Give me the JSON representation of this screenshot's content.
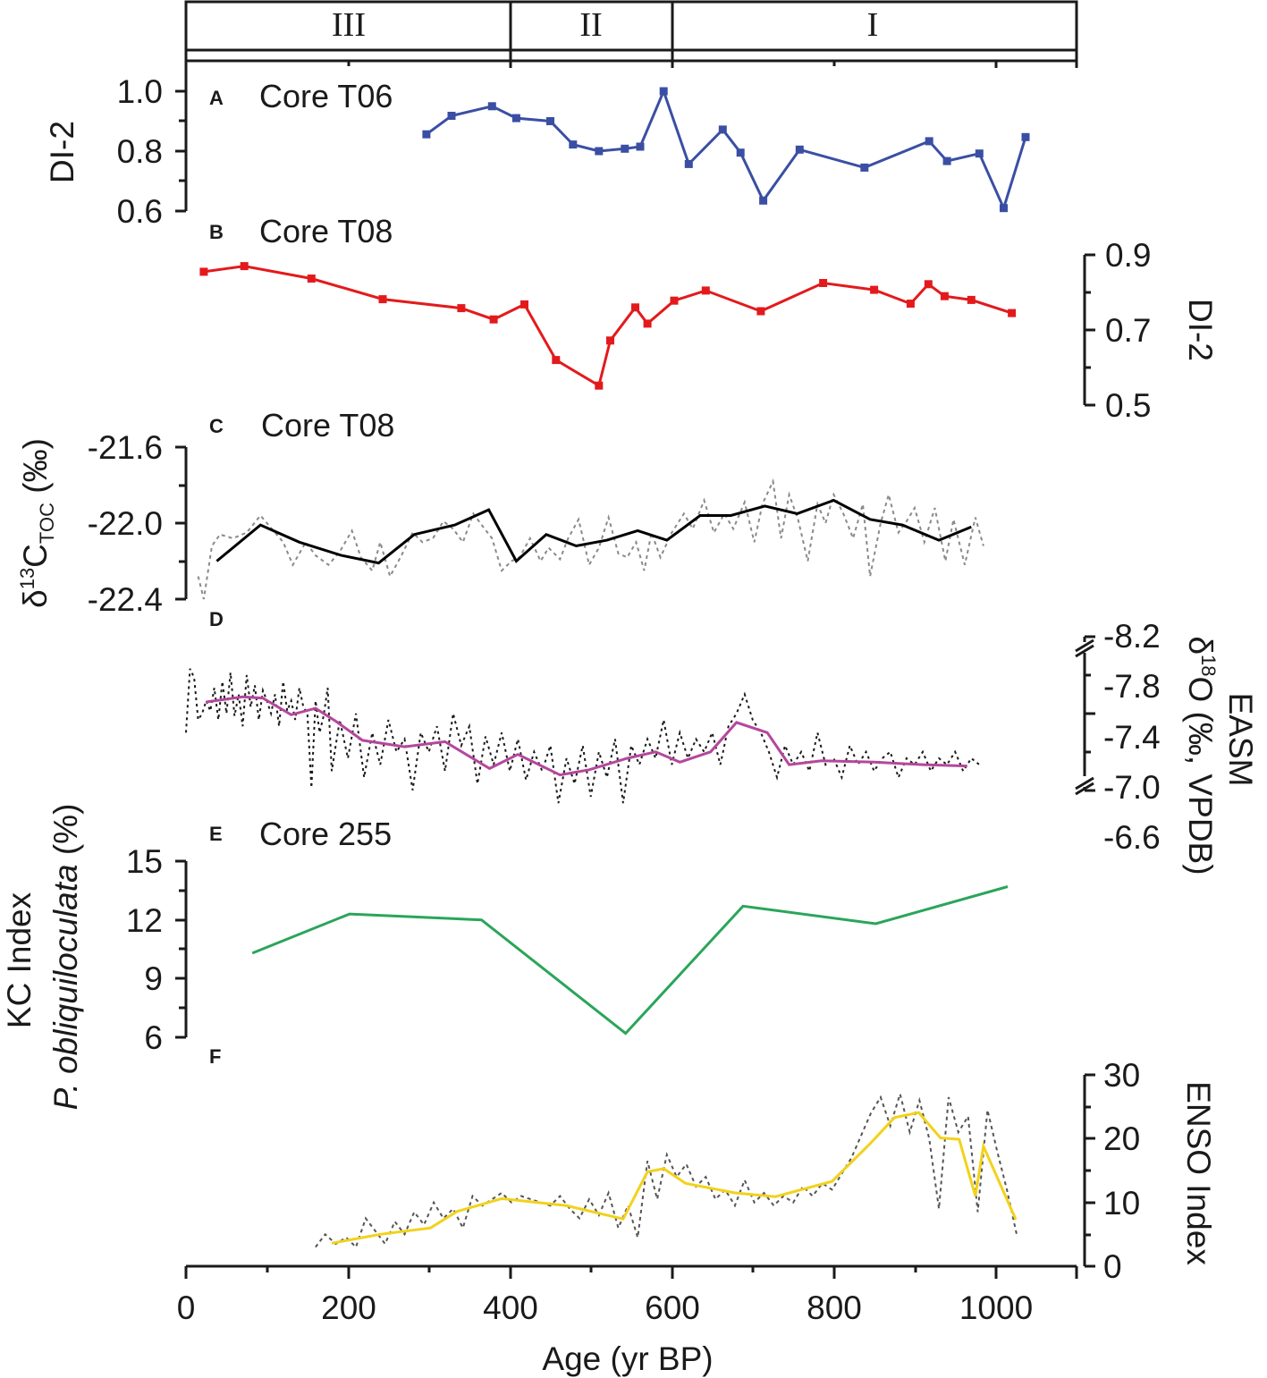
{
  "figure": {
    "x_axis": {
      "label": "Age (yr BP)",
      "range": [
        0,
        1100
      ],
      "ticks": [
        0,
        200,
        400,
        600,
        800,
        1000
      ]
    },
    "zones": [
      {
        "label": "III",
        "from": 0,
        "to": 400
      },
      {
        "label": "II",
        "from": 400,
        "to": 600
      },
      {
        "label": "I",
        "from": 600,
        "to": 1100
      }
    ]
  },
  "chart_data": [
    {
      "type": "line",
      "letter": "A",
      "title": "Core T06",
      "ylabel": "DI-2",
      "ylim": [
        0.6,
        1.0
      ],
      "yticks": [
        "0.6",
        "0.8",
        "1.0"
      ],
      "axis_side": "left",
      "color": "#3a4fa3",
      "markers": true,
      "series": [
        {
          "name": "DI-2 (T06)",
          "x": [
            297,
            328,
            378,
            408,
            450,
            478,
            510,
            542,
            561,
            590,
            621,
            663,
            685,
            713,
            758,
            838,
            918,
            940,
            980,
            1010,
            1037
          ],
          "y": [
            0.856,
            0.918,
            0.95,
            0.91,
            0.9,
            0.822,
            0.8,
            0.808,
            0.815,
            1.0,
            0.757,
            0.872,
            0.795,
            0.635,
            0.805,
            0.745,
            0.833,
            0.767,
            0.792,
            0.61,
            0.847
          ]
        }
      ]
    },
    {
      "type": "line",
      "letter": "B",
      "title": "Core T08",
      "ylabel": "DI-2",
      "ylim": [
        0.5,
        0.9
      ],
      "yticks": [
        "0.5",
        "0.7",
        "0.9"
      ],
      "axis_side": "right",
      "color": "#e31a1c",
      "markers": true,
      "series": [
        {
          "name": "DI-2 (T08)",
          "x": [
            22,
            72,
            155,
            243,
            340,
            380,
            418,
            457,
            510,
            524,
            555,
            570,
            603,
            642,
            710,
            787,
            850,
            895,
            917,
            937,
            970,
            1020
          ],
          "y": [
            0.855,
            0.87,
            0.837,
            0.782,
            0.758,
            0.728,
            0.768,
            0.62,
            0.552,
            0.672,
            0.76,
            0.717,
            0.778,
            0.805,
            0.75,
            0.825,
            0.807,
            0.77,
            0.822,
            0.79,
            0.78,
            0.745
          ]
        }
      ]
    },
    {
      "type": "line",
      "letter": "C",
      "title": "Core T08",
      "ylabel": "δ13CTOC (‰)",
      "ylim": [
        -22.4,
        -21.6
      ],
      "yticks": [
        "-21.6",
        "-22.0",
        "-22.4"
      ],
      "axis_side": "left",
      "color": "#000000",
      "series": [
        {
          "name": "smoothed",
          "x": [
            38,
            92,
            140,
            192,
            238,
            282,
            332,
            374,
            408,
            445,
            482,
            520,
            558,
            594,
            635,
            673,
            715,
            755,
            800,
            845,
            885,
            930,
            970
          ],
          "y": [
            -22.2,
            -22.01,
            -22.1,
            -22.17,
            -22.21,
            -22.06,
            -22.01,
            -21.93,
            -22.2,
            -22.06,
            -22.12,
            -22.09,
            -22.04,
            -22.09,
            -21.96,
            -21.96,
            -21.91,
            -21.95,
            -21.88,
            -21.98,
            -22.01,
            -22.09,
            -22.02
          ]
        },
        {
          "name": "raw",
          "x": [
            15,
            22,
            32,
            42,
            58,
            75,
            92,
            108,
            120,
            132,
            148,
            160,
            176,
            190,
            205,
            216,
            230,
            240,
            252,
            265,
            280,
            292,
            305,
            318,
            330,
            342,
            355,
            367,
            378,
            390,
            402,
            412,
            425,
            438,
            448,
            462,
            472,
            485,
            498,
            510,
            522,
            534,
            545,
            556,
            566,
            575,
            586,
            600,
            615,
            626,
            640,
            652,
            665,
            676,
            690,
            702,
            712,
            725,
            735,
            745,
            756,
            768,
            780,
            790,
            800,
            812,
            824,
            836,
            845,
            858,
            868,
            880,
            890,
            900,
            912,
            925,
            938,
            948,
            962,
            975,
            985
          ],
          "y": [
            -22.28,
            -22.4,
            -22.12,
            -22.06,
            -22.08,
            -22.05,
            -21.96,
            -22.04,
            -22.1,
            -22.22,
            -22.1,
            -22.17,
            -22.22,
            -22.15,
            -22.04,
            -22.18,
            -22.25,
            -22.1,
            -22.28,
            -22.18,
            -22.05,
            -22.1,
            -22.08,
            -21.99,
            -22.03,
            -22.1,
            -21.95,
            -22.02,
            -22.08,
            -22.25,
            -22.2,
            -22.18,
            -22.08,
            -22.2,
            -22.13,
            -22.19,
            -22.08,
            -21.98,
            -22.22,
            -22.13,
            -21.97,
            -22.16,
            -22.18,
            -22.1,
            -22.25,
            -22.05,
            -22.18,
            -22.05,
            -21.95,
            -22.03,
            -21.88,
            -22.05,
            -21.95,
            -22.03,
            -21.89,
            -22.1,
            -21.9,
            -21.78,
            -22.08,
            -21.85,
            -21.98,
            -22.2,
            -21.9,
            -22.0,
            -21.85,
            -21.95,
            -22.08,
            -21.9,
            -22.28,
            -22.0,
            -21.85,
            -22.05,
            -21.99,
            -21.92,
            -22.1,
            -21.92,
            -22.2,
            -21.98,
            -22.22,
            -21.97,
            -22.12
          ]
        }
      ]
    },
    {
      "type": "line",
      "letter": "D",
      "title": "",
      "ylabel": "EASM δ18O (‰, VPDB)",
      "ylim": [
        -6.6,
        -8.2
      ],
      "yticks": [
        "-8.2",
        "-7.8",
        "-7.4",
        "-7.0",
        "-6.6"
      ],
      "axis_side": "right",
      "color": "#b5479c",
      "series": [
        {
          "name": "smoothed",
          "x": [
            25,
            70,
            95,
            130,
            160,
            185,
            218,
            270,
            320,
            375,
            410,
            462,
            498,
            545,
            580,
            610,
            648,
            680,
            718,
            745,
            785,
            850,
            910,
            965
          ],
          "y": [
            -7.69,
            -7.73,
            -7.72,
            -7.59,
            -7.64,
            -7.54,
            -7.39,
            -7.34,
            -7.38,
            -7.17,
            -7.28,
            -7.12,
            -7.16,
            -7.25,
            -7.3,
            -7.22,
            -7.3,
            -7.53,
            -7.45,
            -7.2,
            -7.23,
            -7.22,
            -7.2,
            -7.19
          ]
        },
        {
          "name": "raw",
          "x": [
            0,
            5,
            10,
            15,
            20,
            25,
            30,
            35,
            40,
            45,
            50,
            55,
            60,
            65,
            70,
            75,
            80,
            85,
            90,
            95,
            100,
            105,
            110,
            115,
            120,
            125,
            130,
            135,
            140,
            145,
            150,
            155,
            160,
            165,
            170,
            175,
            180,
            190,
            200,
            210,
            220,
            230,
            240,
            250,
            260,
            270,
            280,
            290,
            300,
            310,
            320,
            330,
            340,
            350,
            360,
            370,
            380,
            390,
            400,
            410,
            420,
            430,
            440,
            450,
            460,
            470,
            480,
            490,
            500,
            510,
            520,
            530,
            540,
            550,
            560,
            570,
            580,
            590,
            600,
            610,
            620,
            630,
            640,
            650,
            660,
            670,
            680,
            690,
            700,
            710,
            720,
            730,
            740,
            750,
            760,
            770,
            780,
            790,
            800,
            810,
            820,
            830,
            840,
            850,
            860,
            870,
            880,
            890,
            900,
            910,
            920,
            930,
            940,
            950,
            960,
            970,
            980
          ],
          "y": [
            -7.45,
            -7.95,
            -7.88,
            -7.55,
            -7.6,
            -7.7,
            -7.62,
            -7.8,
            -7.55,
            -7.85,
            -7.6,
            -7.92,
            -7.58,
            -7.75,
            -7.5,
            -7.9,
            -7.65,
            -7.82,
            -7.55,
            -7.78,
            -7.7,
            -7.6,
            -7.75,
            -7.5,
            -7.85,
            -7.62,
            -7.7,
            -7.55,
            -7.8,
            -7.65,
            -7.6,
            -7.02,
            -7.7,
            -7.45,
            -7.58,
            -7.8,
            -7.15,
            -7.55,
            -7.25,
            -7.6,
            -7.1,
            -7.45,
            -7.2,
            -7.55,
            -7.3,
            -7.4,
            -7.0,
            -7.45,
            -7.3,
            -7.5,
            -7.15,
            -7.6,
            -7.35,
            -7.5,
            -7.05,
            -7.42,
            -7.2,
            -7.45,
            -7.15,
            -7.4,
            -7.08,
            -7.3,
            -7.15,
            -7.35,
            -6.9,
            -7.25,
            -7.05,
            -7.35,
            -6.95,
            -7.3,
            -7.1,
            -7.4,
            -6.9,
            -7.35,
            -7.2,
            -7.4,
            -7.25,
            -7.55,
            -7.2,
            -7.45,
            -7.25,
            -7.4,
            -7.3,
            -7.45,
            -7.2,
            -7.5,
            -7.6,
            -7.75,
            -7.55,
            -7.45,
            -7.3,
            -7.1,
            -7.35,
            -7.2,
            -7.3,
            -7.15,
            -7.45,
            -7.2,
            -7.25,
            -7.1,
            -7.35,
            -7.2,
            -7.3,
            -7.15,
            -7.25,
            -7.3,
            -7.1,
            -7.25,
            -7.2,
            -7.3,
            -7.15,
            -7.25,
            -7.2,
            -7.3,
            -7.15,
            -7.25,
            -7.2
          ]
        }
      ]
    },
    {
      "type": "line",
      "letter": "E",
      "title": "Core 255",
      "ylabel": "P. obliquiloculata (%)",
      "ylim": [
        6,
        15
      ],
      "yticks": [
        "6",
        "9",
        "12",
        "15"
      ],
      "axis_side": "left",
      "color": "#2aa55a",
      "series": [
        {
          "name": "P. obliquiloculata",
          "x": [
            82,
            202,
            365,
            543,
            688,
            852,
            1015
          ],
          "y": [
            10.3,
            12.3,
            12.0,
            6.2,
            12.7,
            11.8,
            13.7
          ]
        }
      ]
    },
    {
      "type": "line",
      "letter": "F",
      "title": "",
      "ylabel": "ENSO Index",
      "ylim": [
        0,
        30
      ],
      "yticks": [
        "0",
        "10",
        "20",
        "30"
      ],
      "axis_side": "right",
      "color": "#f2d21b",
      "series": [
        {
          "name": "smoothed",
          "x": [
            180,
            240,
            302,
            335,
            390,
            470,
            540,
            570,
            590,
            617,
            678,
            728,
            798,
            845,
            875,
            905,
            932,
            955,
            975,
            985,
            1025
          ],
          "y": [
            3.6,
            5.0,
            6.0,
            8.6,
            10.6,
            9.5,
            7.4,
            14.8,
            15.3,
            13.0,
            11.5,
            10.9,
            13.3,
            19.2,
            23.3,
            24.1,
            20.1,
            19.9,
            11.0,
            18.8,
            7.3
          ]
        },
        {
          "name": "raw",
          "x": [
            160,
            172,
            185,
            198,
            210,
            222,
            234,
            246,
            258,
            270,
            282,
            294,
            306,
            318,
            330,
            342,
            354,
            366,
            378,
            390,
            402,
            414,
            426,
            438,
            450,
            462,
            474,
            486,
            498,
            510,
            522,
            534,
            546,
            558,
            570,
            582,
            594,
            606,
            618,
            630,
            642,
            654,
            666,
            678,
            690,
            702,
            714,
            726,
            738,
            750,
            762,
            774,
            786,
            798,
            810,
            822,
            834,
            846,
            858,
            870,
            882,
            894,
            906,
            918,
            930,
            942,
            954,
            966,
            978,
            990,
            1002,
            1014,
            1026
          ],
          "y": [
            3.0,
            5.0,
            3.5,
            4.5,
            3.0,
            7.5,
            5.5,
            3.5,
            7.0,
            5.0,
            8.5,
            6.5,
            10.0,
            7.5,
            9.0,
            6.0,
            11.0,
            9.5,
            10.5,
            11.5,
            10.0,
            11.0,
            10.5,
            10.0,
            9.5,
            11.0,
            9.0,
            7.5,
            10.5,
            8.0,
            11.5,
            6.0,
            9.5,
            4.5,
            16.5,
            10.5,
            17.5,
            14.0,
            16.0,
            12.5,
            14.0,
            10.5,
            12.0,
            9.5,
            13.5,
            10.0,
            11.5,
            9.5,
            11.0,
            10.0,
            12.5,
            11.0,
            13.0,
            12.0,
            14.5,
            17.0,
            20.5,
            24.0,
            26.5,
            22.0,
            27.0,
            21.0,
            26.0,
            20.0,
            9.0,
            26.5,
            21.0,
            23.5,
            8.5,
            24.5,
            18.0,
            12.0,
            5.0
          ]
        }
      ]
    }
  ]
}
